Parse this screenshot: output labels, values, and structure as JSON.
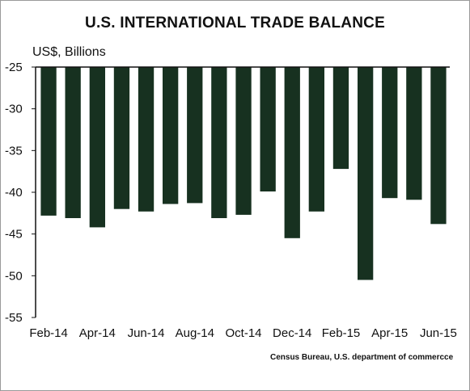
{
  "chart_data": {
    "type": "bar",
    "title": "U.S. INTERNATIONAL TRADE BALANCE",
    "ylabel": "US$, Billions",
    "source": "Census Bureau, U.S. department of commercce",
    "ylim": [
      -55,
      -25
    ],
    "yticks": [
      -25,
      -30,
      -35,
      -40,
      -45,
      -50,
      -55
    ],
    "categories": [
      "Feb-14",
      "Mar-14",
      "Apr-14",
      "May-14",
      "Jun-14",
      "Jul-14",
      "Aug-14",
      "Sep-14",
      "Oct-14",
      "Nov-14",
      "Dec-14",
      "Jan-15",
      "Feb-15",
      "Mar-15",
      "Apr-15",
      "May-15",
      "Jun-15"
    ],
    "xtick_labels": [
      "Feb-14",
      "",
      "Apr-14",
      "",
      "Jun-14",
      "",
      "Aug-14",
      "",
      "Oct-14",
      "",
      "Dec-14",
      "",
      "Feb-15",
      "",
      "Apr-15",
      "",
      "Jun-15"
    ],
    "values": [
      -42.8,
      -43.1,
      -44.2,
      -42.0,
      -42.3,
      -41.4,
      -41.3,
      -43.1,
      -42.7,
      -39.9,
      -45.5,
      -42.3,
      -37.2,
      -50.5,
      -40.7,
      -40.9,
      -43.8
    ],
    "bar_color": "#173120",
    "grid": false
  }
}
